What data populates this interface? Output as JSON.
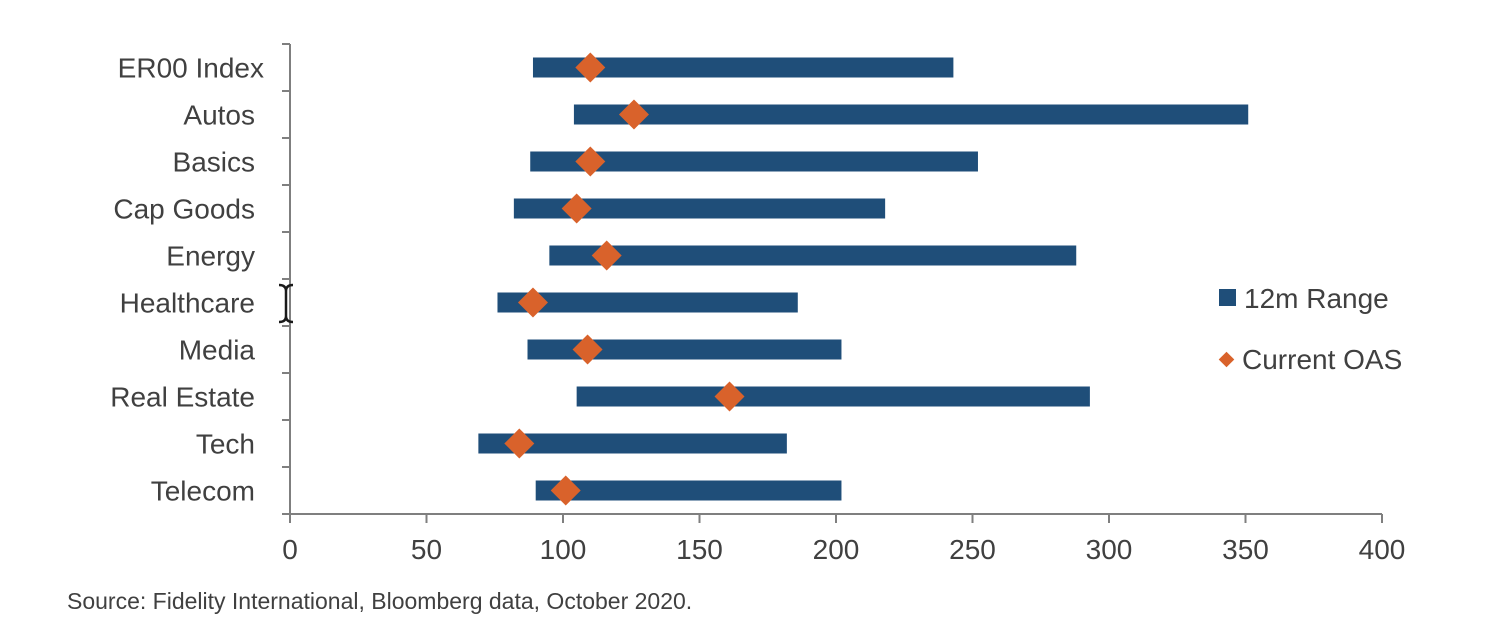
{
  "chart_data": {
    "type": "bar",
    "orientation": "horizontal",
    "categories": [
      "ER00 Index",
      "Autos",
      "Basics",
      "Cap Goods",
      "Energy",
      "Healthcare",
      "Media",
      "Real Estate",
      "Tech",
      "Telecom"
    ],
    "series": [
      {
        "name": "12m Range",
        "kind": "floating-bar",
        "color": "#1f4e79",
        "low": [
          89,
          104,
          88,
          82,
          95,
          76,
          87,
          105,
          69,
          90
        ],
        "high": [
          243,
          351,
          252,
          218,
          288,
          186,
          202,
          293,
          182,
          202
        ]
      },
      {
        "name": "Current OAS",
        "kind": "diamond-marker",
        "color": "#d9622b",
        "values": [
          110,
          126,
          110,
          105,
          116,
          89,
          109,
          161,
          84,
          101
        ]
      }
    ],
    "xlim": [
      0,
      400
    ],
    "x_ticks": [
      0,
      50,
      100,
      150,
      200,
      250,
      300,
      350,
      400
    ],
    "grid": false,
    "legend_position": "right"
  },
  "footer": {
    "source": "Source: Fidelity International, Bloomberg data, October 2020."
  }
}
